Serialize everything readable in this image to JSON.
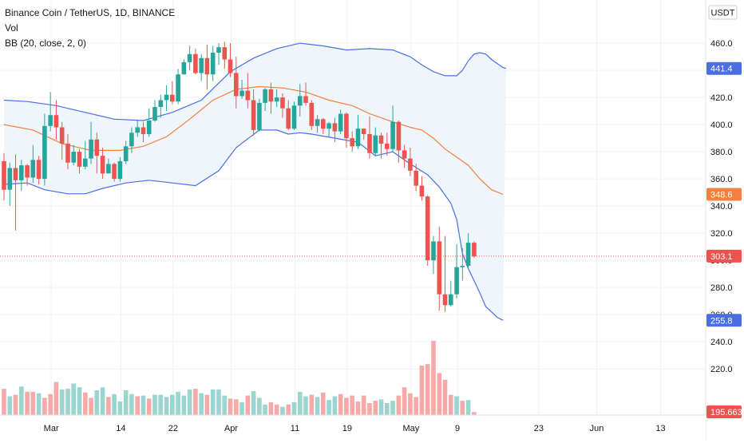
{
  "header": {
    "symbol_line": "Binance Coin / TetherUS, 1D, BINANCE",
    "volume_label": "Vol",
    "bb_label": "BB (20, close, 2, 0)"
  },
  "chart_data": {
    "type": "candlestick",
    "symbol": "Binance Coin / TetherUS",
    "interval": "1D",
    "exchange": "BINANCE",
    "currency_label": "USDT",
    "ylim": [
      186,
      483
    ],
    "y_ticks": [
      "460.0",
      "440.0",
      "420.0",
      "400.0",
      "380.0",
      "360.0",
      "340.0",
      "320.0",
      "300.0",
      "280.0",
      "260.0",
      "240.0",
      "220.0"
    ],
    "x_ticks": [
      "Mar",
      "14",
      "22",
      "Apr",
      "11",
      "19",
      "May",
      "9",
      "23",
      "Jun",
      "13"
    ],
    "price_labels": {
      "bb_upper": "441.4",
      "bb_basis": "348.6",
      "last": "303.1",
      "bb_lower": "255.8",
      "volume": "195.663K"
    },
    "colors": {
      "up": "#26a69a",
      "down": "#ef5350",
      "volume_up": "#9ad6cf",
      "volume_down": "#f7a9a7",
      "bb_band": "#4a6fe3",
      "bb_basis": "#f57f3c",
      "bb_fill": "#eef6fc",
      "last_price": "#ef5350"
    },
    "candles": [
      [
        373,
        352,
        379,
        344
      ],
      [
        352,
        368,
        372,
        340
      ],
      [
        368,
        359,
        378,
        322
      ],
      [
        359,
        370,
        374,
        351
      ],
      [
        370,
        361,
        371,
        355
      ],
      [
        361,
        374,
        385,
        357
      ],
      [
        374,
        360,
        377,
        356
      ],
      [
        360,
        399,
        408,
        355
      ],
      [
        399,
        407,
        424,
        395
      ],
      [
        407,
        398,
        418,
        389
      ],
      [
        398,
        386,
        402,
        374
      ],
      [
        386,
        372,
        393,
        367
      ],
      [
        372,
        380,
        385,
        370
      ],
      [
        380,
        369,
        382,
        364
      ],
      [
        369,
        375,
        388,
        367
      ],
      [
        375,
        389,
        402,
        371
      ],
      [
        389,
        377,
        394,
        364
      ],
      [
        377,
        364,
        383,
        360
      ],
      [
        364,
        371,
        375,
        364
      ],
      [
        371,
        360,
        372,
        358
      ],
      [
        360,
        373,
        376,
        358
      ],
      [
        373,
        384,
        388,
        371
      ],
      [
        384,
        394,
        398,
        379
      ],
      [
        394,
        398,
        403,
        391
      ],
      [
        398,
        393,
        402,
        387
      ],
      [
        393,
        403,
        412,
        391
      ],
      [
        403,
        413,
        418,
        402
      ],
      [
        413,
        418,
        422,
        405
      ],
      [
        418,
        422,
        429,
        410
      ],
      [
        422,
        417,
        432,
        415
      ],
      [
        417,
        437,
        441,
        415
      ],
      [
        437,
        446,
        448,
        437
      ],
      [
        446,
        452,
        458,
        440
      ],
      [
        452,
        438,
        456,
        437
      ],
      [
        438,
        449,
        452,
        432
      ],
      [
        449,
        437,
        459,
        426
      ],
      [
        437,
        453,
        458,
        432
      ],
      [
        453,
        457,
        460,
        444
      ],
      [
        457,
        448,
        461,
        441
      ],
      [
        448,
        438,
        460,
        435
      ],
      [
        438,
        421,
        450,
        412
      ],
      [
        421,
        425,
        433,
        419
      ],
      [
        425,
        418,
        438,
        412
      ],
      [
        418,
        396,
        426,
        392
      ],
      [
        396,
        416,
        419,
        395
      ],
      [
        416,
        426,
        427,
        410
      ],
      [
        426,
        417,
        431,
        408
      ],
      [
        417,
        420,
        426,
        413
      ],
      [
        420,
        412,
        423,
        405
      ],
      [
        412,
        397,
        418,
        396
      ],
      [
        397,
        414,
        417,
        396
      ],
      [
        414,
        421,
        430,
        406
      ],
      [
        421,
        416,
        431,
        414
      ],
      [
        416,
        399,
        418,
        396
      ],
      [
        399,
        404,
        407,
        394
      ],
      [
        404,
        397,
        405,
        393
      ],
      [
        397,
        401,
        402,
        391
      ],
      [
        401,
        395,
        405,
        387
      ],
      [
        395,
        408,
        411,
        393
      ],
      [
        408,
        390,
        409,
        383
      ],
      [
        390,
        384,
        395,
        380
      ],
      [
        384,
        397,
        407,
        382
      ],
      [
        397,
        393,
        397,
        389
      ],
      [
        393,
        379,
        406,
        375
      ],
      [
        379,
        392,
        398,
        377
      ],
      [
        392,
        386,
        394,
        375
      ],
      [
        386,
        382,
        394,
        377
      ],
      [
        382,
        402,
        414,
        380
      ],
      [
        402,
        381,
        403,
        372
      ],
      [
        381,
        375,
        385,
        368
      ],
      [
        375,
        366,
        383,
        362
      ],
      [
        366,
        355,
        371,
        351
      ],
      [
        355,
        347,
        362,
        344
      ],
      [
        347,
        300,
        348,
        296
      ],
      [
        300,
        314,
        318,
        290
      ],
      [
        314,
        275,
        325,
        263
      ],
      [
        275,
        267,
        318,
        262
      ],
      [
        267,
        275,
        285,
        266
      ],
      [
        275,
        295,
        312,
        272
      ],
      [
        295,
        296,
        309,
        285
      ],
      [
        296,
        313,
        320,
        295
      ],
      [
        313,
        303,
        314,
        302
      ]
    ],
    "volumes": [
      [
        35,
        0
      ],
      [
        25,
        1
      ],
      [
        27,
        0
      ],
      [
        38,
        1
      ],
      [
        31,
        0
      ],
      [
        31,
        0
      ],
      [
        29,
        1
      ],
      [
        23,
        0
      ],
      [
        28,
        0
      ],
      [
        44,
        0
      ],
      [
        34,
        1
      ],
      [
        35,
        1
      ],
      [
        42,
        1
      ],
      [
        37,
        1
      ],
      [
        30,
        0
      ],
      [
        23,
        0
      ],
      [
        33,
        1
      ],
      [
        37,
        1
      ],
      [
        24,
        0
      ],
      [
        28,
        1
      ],
      [
        18,
        1
      ],
      [
        33,
        1
      ],
      [
        28,
        1
      ],
      [
        25,
        0
      ],
      [
        26,
        1
      ],
      [
        22,
        0
      ],
      [
        27,
        1
      ],
      [
        27,
        1
      ],
      [
        24,
        1
      ],
      [
        27,
        1
      ],
      [
        31,
        1
      ],
      [
        26,
        1
      ],
      [
        34,
        1
      ],
      [
        35,
        0
      ],
      [
        29,
        1
      ],
      [
        27,
        0
      ],
      [
        34,
        1
      ],
      [
        34,
        1
      ],
      [
        26,
        1
      ],
      [
        22,
        0
      ],
      [
        21,
        0
      ],
      [
        17,
        1
      ],
      [
        26,
        0
      ],
      [
        32,
        1
      ],
      [
        23,
        1
      ],
      [
        14,
        1
      ],
      [
        17,
        0
      ],
      [
        14,
        0
      ],
      [
        11,
        1
      ],
      [
        14,
        0
      ],
      [
        17,
        1
      ],
      [
        31,
        1
      ],
      [
        25,
        1
      ],
      [
        27,
        0
      ],
      [
        24,
        1
      ],
      [
        30,
        0
      ],
      [
        20,
        1
      ],
      [
        25,
        1
      ],
      [
        28,
        0
      ],
      [
        23,
        0
      ],
      [
        26,
        0
      ],
      [
        18,
        0
      ],
      [
        26,
        0
      ],
      [
        16,
        0
      ],
      [
        19,
        0
      ],
      [
        21,
        1
      ],
      [
        16,
        1
      ],
      [
        19,
        1
      ],
      [
        26,
        0
      ],
      [
        37,
        0
      ],
      [
        29,
        0
      ],
      [
        24,
        0
      ],
      [
        66,
        0
      ],
      [
        68,
        0
      ],
      [
        99,
        0
      ],
      [
        56,
        0
      ],
      [
        47,
        0
      ],
      [
        27,
        0
      ],
      [
        25,
        1
      ],
      [
        19,
        0
      ],
      [
        20,
        1
      ],
      [
        4,
        0
      ]
    ],
    "bb_upper": [
      [
        0,
        418
      ],
      [
        4,
        417
      ],
      [
        9,
        414
      ],
      [
        14,
        409
      ],
      [
        19,
        404
      ],
      [
        24,
        403
      ],
      [
        29,
        409
      ],
      [
        34,
        418
      ],
      [
        39,
        439
      ],
      [
        43,
        449
      ],
      [
        47,
        456
      ],
      [
        51,
        460
      ],
      [
        55,
        458
      ],
      [
        59,
        455
      ],
      [
        63,
        456
      ],
      [
        67,
        455
      ],
      [
        70,
        450
      ],
      [
        72,
        444
      ],
      [
        74,
        439
      ],
      [
        76,
        436
      ],
      [
        78,
        436
      ],
      [
        79,
        440
      ],
      [
        80,
        447
      ],
      [
        81,
        452
      ],
      [
        82,
        453
      ],
      [
        83,
        452
      ],
      [
        84,
        448
      ],
      [
        85,
        445
      ],
      [
        86,
        442
      ],
      [
        86.5,
        441.4
      ]
    ],
    "bb_basis": [
      [
        0,
        400
      ],
      [
        5,
        396
      ],
      [
        10,
        386
      ],
      [
        15,
        381
      ],
      [
        20,
        381
      ],
      [
        24,
        384
      ],
      [
        28,
        391
      ],
      [
        32,
        404
      ],
      [
        36,
        418
      ],
      [
        40,
        426
      ],
      [
        44,
        428
      ],
      [
        48,
        427
      ],
      [
        52,
        424
      ],
      [
        56,
        418
      ],
      [
        60,
        414
      ],
      [
        63,
        408
      ],
      [
        67,
        402
      ],
      [
        70,
        398
      ],
      [
        72,
        396
      ],
      [
        74,
        390
      ],
      [
        76,
        382
      ],
      [
        78,
        376
      ],
      [
        80,
        370
      ],
      [
        82,
        360
      ],
      [
        84,
        352
      ],
      [
        86,
        348.6
      ]
    ],
    "bb_lower": [
      [
        0,
        356
      ],
      [
        4,
        357
      ],
      [
        7,
        352
      ],
      [
        11,
        349
      ],
      [
        14,
        349
      ],
      [
        17,
        353
      ],
      [
        21,
        357
      ],
      [
        25,
        359
      ],
      [
        29,
        357
      ],
      [
        33,
        355
      ],
      [
        37,
        366
      ],
      [
        40,
        383
      ],
      [
        44,
        396
      ],
      [
        47,
        396
      ],
      [
        49,
        393
      ],
      [
        51,
        394
      ],
      [
        53,
        393
      ],
      [
        57,
        390
      ],
      [
        61,
        387
      ],
      [
        64,
        377
      ],
      [
        67,
        380
      ],
      [
        70,
        371
      ],
      [
        73,
        363
      ],
      [
        75,
        354
      ],
      [
        77,
        342
      ],
      [
        78,
        330
      ],
      [
        79,
        305
      ],
      [
        80,
        294
      ],
      [
        81,
        285
      ],
      [
        82,
        276
      ],
      [
        83,
        266
      ],
      [
        84,
        262
      ],
      [
        85,
        258
      ],
      [
        86,
        255.8
      ]
    ]
  }
}
